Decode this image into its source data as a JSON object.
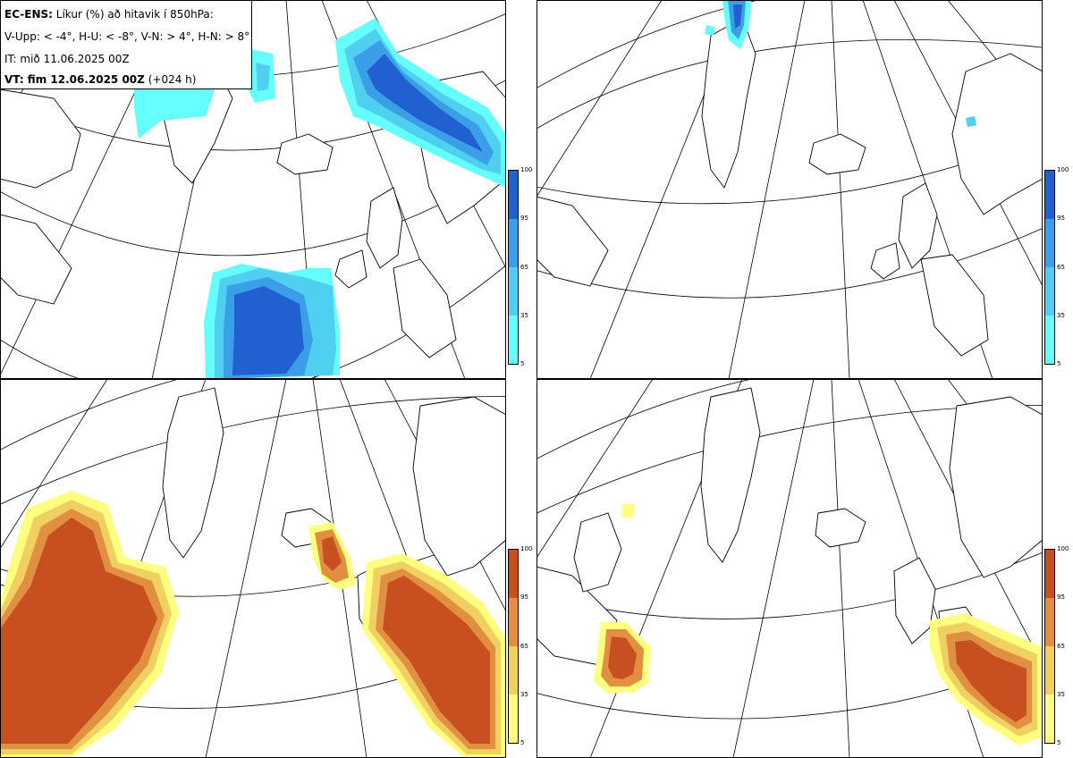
{
  "info": {
    "line1_bold": "EC-ENS:",
    "line1_text": "Líkur (%) að hitavik í 850hPa:",
    "line2": "V-Upp: < -4°, H-U: < -8°, V-N: > 4°, H-N: > 8°",
    "line3": "IT: mið 11.06.2025 00Z",
    "line4_bold": "VT: fim 12.06.2025 00Z",
    "line4_text": "(+024 h)"
  },
  "colorbar_labels": [
    "100",
    "95",
    "65",
    "35",
    "5"
  ],
  "colors": {
    "cold_scale": [
      "#66ffff",
      "#50d0f0",
      "#3a9fe6",
      "#2060d0"
    ],
    "warm_scale": [
      "#ffff80",
      "#f0d060",
      "#e09040",
      "#c85020"
    ]
  },
  "panels": [
    {
      "name": "V-Upp",
      "scale": "cold"
    },
    {
      "name": "H-U",
      "scale": "cold"
    },
    {
      "name": "V-N",
      "scale": "warm"
    },
    {
      "name": "H-N",
      "scale": "warm"
    }
  ]
}
